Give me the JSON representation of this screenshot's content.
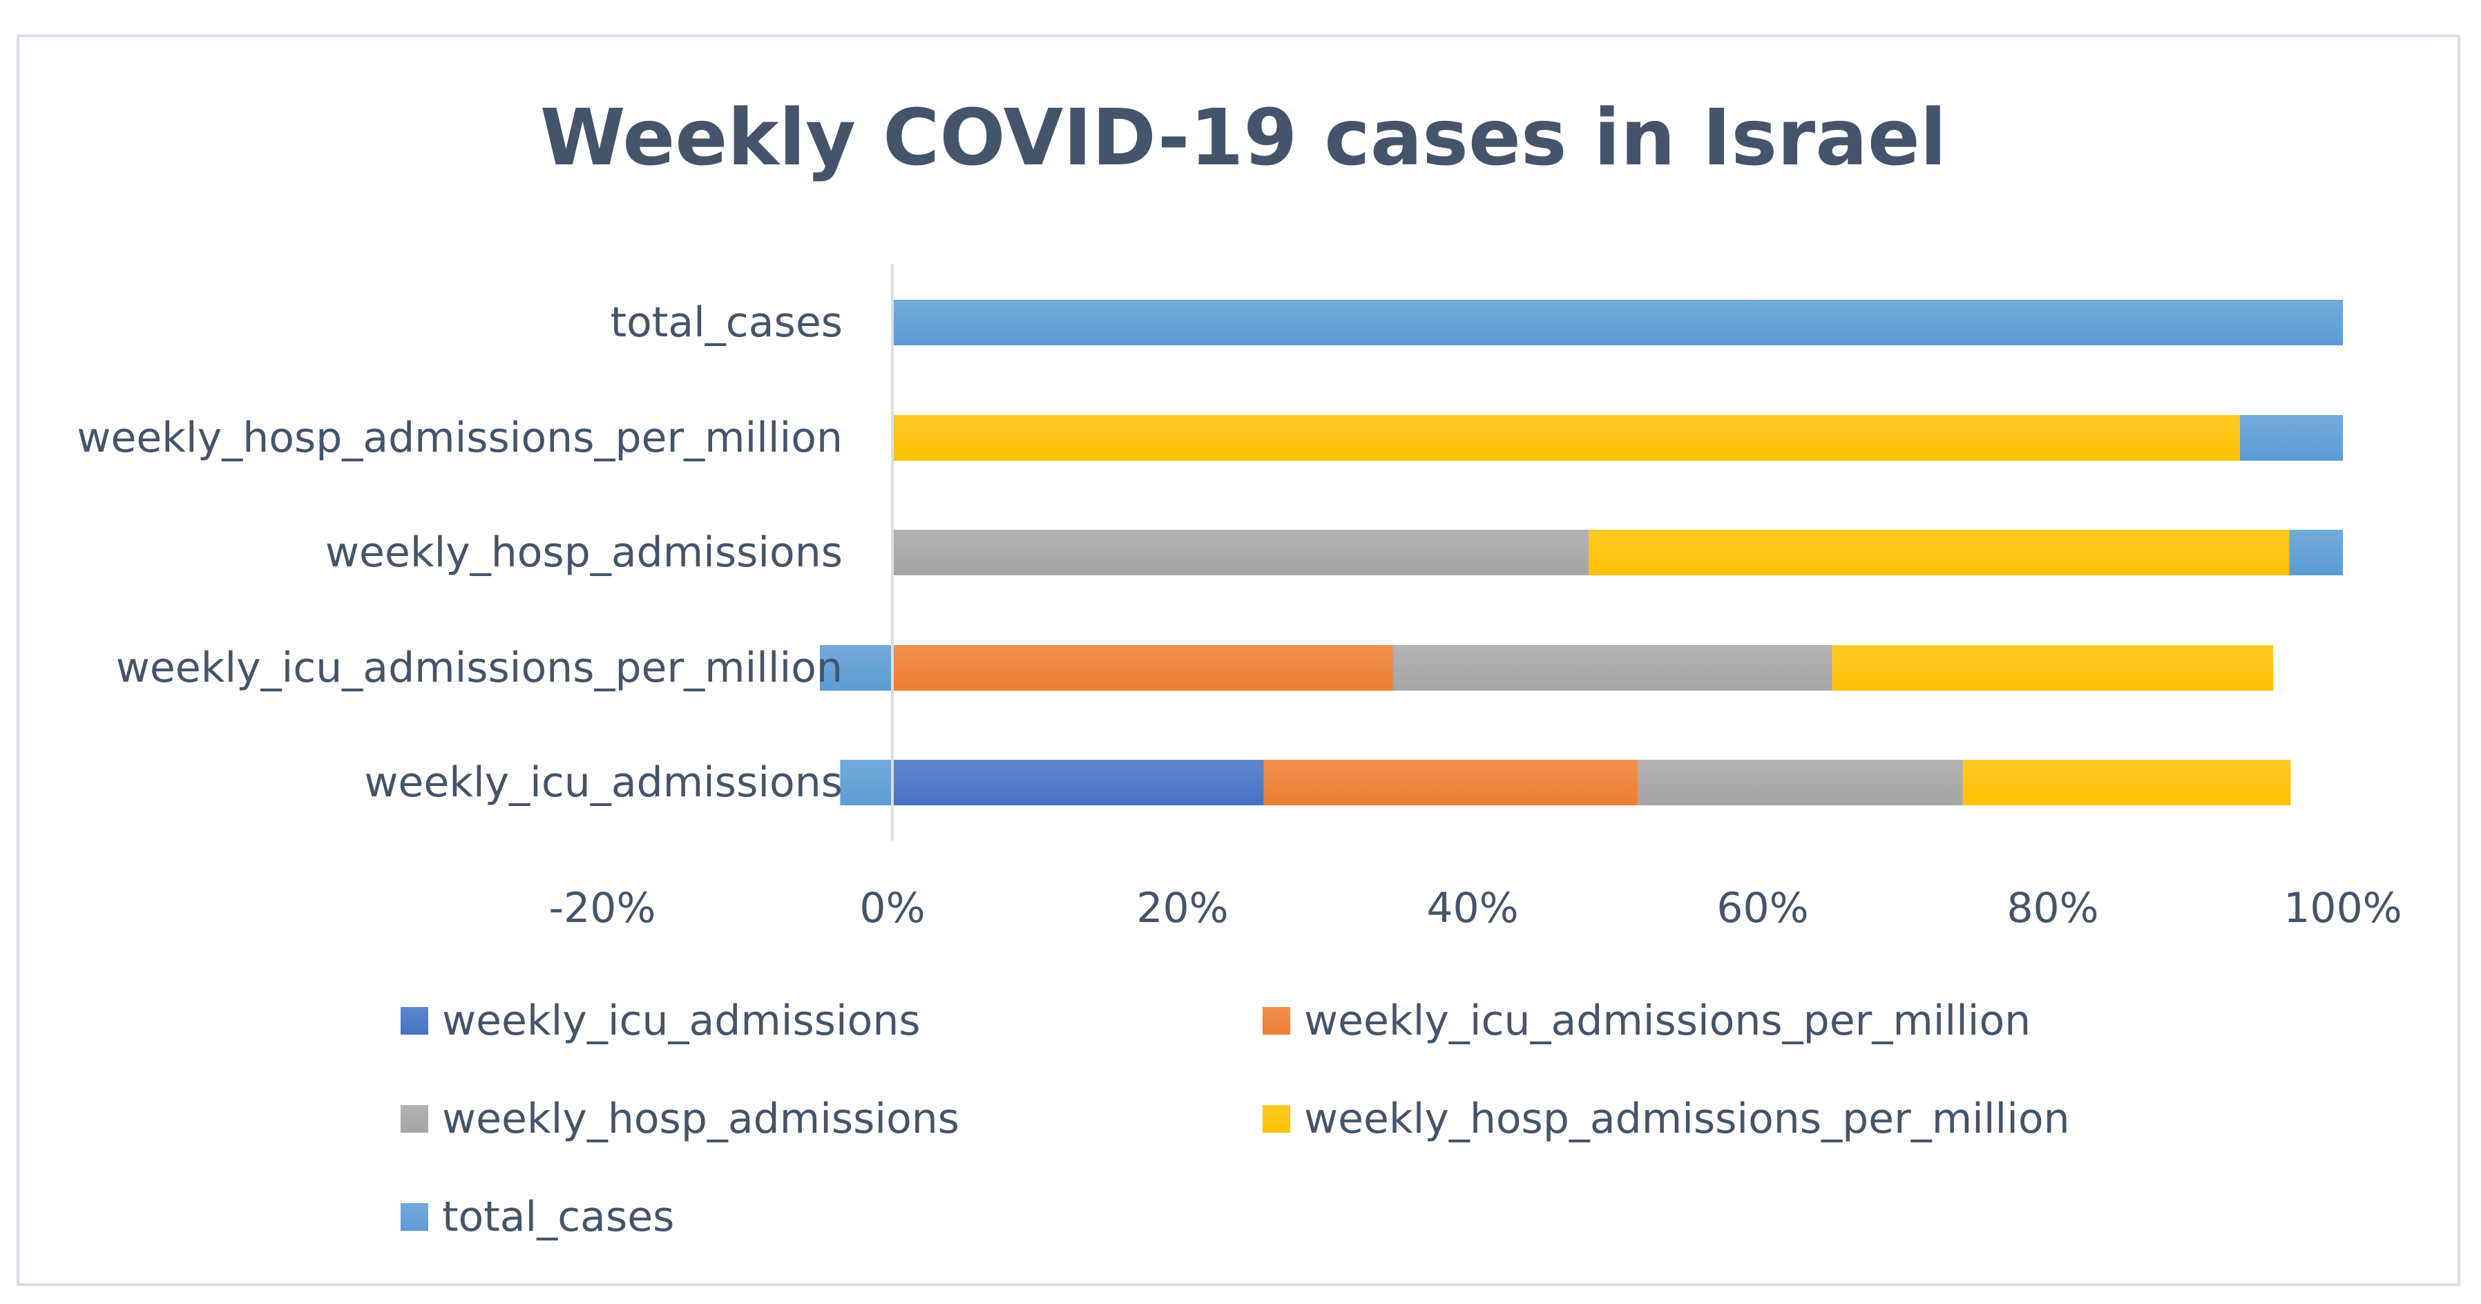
{
  "chart_data": {
    "type": "bar",
    "orientation": "horizontal",
    "stacked": "percent",
    "title": "Weekly COVID-19 cases in Israel",
    "categories": [
      "weekly_icu_admissions",
      "weekly_icu_admissions_per_million",
      "weekly_hosp_admissions",
      "weekly_hosp_admissions_per_million",
      "total_cases"
    ],
    "series": [
      {
        "name": "weekly_icu_admissions",
        "color": "#4472c4",
        "values": [
          25.6,
          0,
          0,
          0,
          0
        ]
      },
      {
        "name": "weekly_icu_admissions_per_million",
        "color": "#ed7d31",
        "values": [
          25.8,
          34.5,
          0,
          0,
          0
        ]
      },
      {
        "name": "weekly_hosp_admissions",
        "color": "#a5a5a5",
        "values": [
          22.4,
          30.3,
          48.0,
          0,
          0
        ]
      },
      {
        "name": "weekly_hosp_admissions_per_million",
        "color": "#ffc000",
        "values": [
          22.6,
          30.4,
          48.3,
          92.9,
          0
        ]
      },
      {
        "name": "total_cases",
        "color": "#5b9bd5",
        "values": [
          -3.6,
          -5.0,
          3.7,
          7.1,
          100
        ]
      }
    ],
    "x_ticks": [
      "-20%",
      "0%",
      "20%",
      "40%",
      "60%",
      "80%",
      "100%"
    ],
    "xlim": [
      -20,
      100
    ],
    "grid": false,
    "legend_position": "bottom"
  }
}
